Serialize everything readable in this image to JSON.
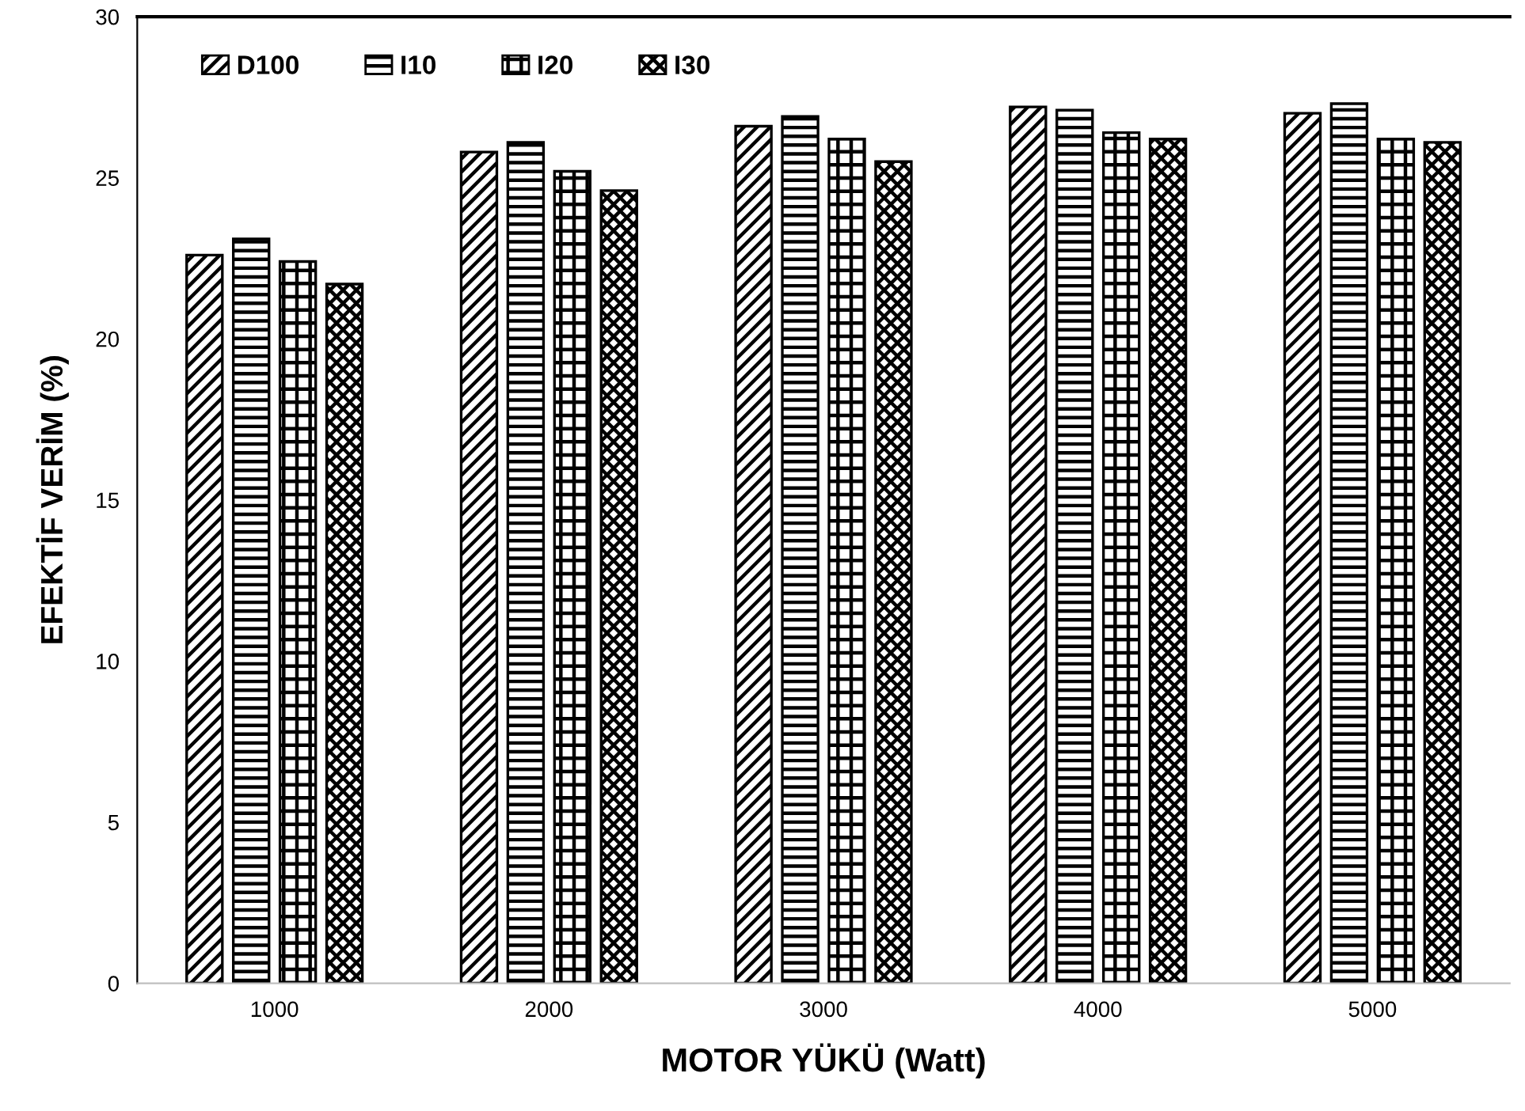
{
  "chart_data": {
    "type": "bar",
    "xlabel": "MOTOR YÜKÜ (Watt)",
    "ylabel": "EFEKTİF VERİM (%)",
    "categories": [
      "1000",
      "2000",
      "3000",
      "4000",
      "5000"
    ],
    "series": [
      {
        "name": "D100",
        "color": "#000000",
        "values": [
          22.6,
          25.8,
          26.6,
          27.2,
          27.0
        ]
      },
      {
        "name": "I10",
        "color": "#000000",
        "values": [
          23.1,
          26.1,
          26.9,
          27.1,
          27.3
        ]
      },
      {
        "name": "I20",
        "color": "#000000",
        "values": [
          22.4,
          25.2,
          26.2,
          26.4,
          26.2
        ]
      },
      {
        "name": "I30",
        "color": "#000000",
        "values": [
          21.7,
          24.6,
          25.5,
          26.2,
          26.1
        ]
      }
    ],
    "ylim": [
      0,
      30
    ],
    "yticks": [
      0,
      5,
      10,
      15,
      20,
      25,
      30
    ],
    "grid": false,
    "legend": "top left"
  }
}
